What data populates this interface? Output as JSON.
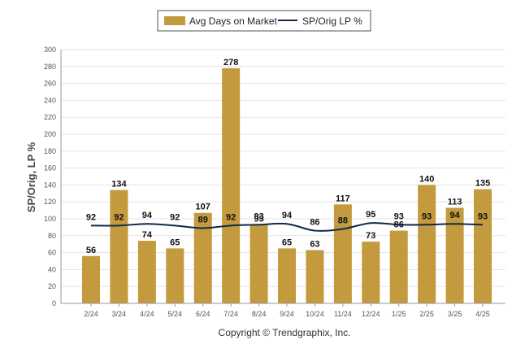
{
  "colors": {
    "bar": "#C39A3E",
    "line": "#0F2A4A",
    "grid": "#E3E3E3",
    "axis": "#999999"
  },
  "legend": {
    "bar_label": "Avg Days on Market",
    "line_label": "SP/Orig LP %"
  },
  "credit": "Copyright © Trendgraphix, Inc.",
  "chart_data": {
    "type": "bar",
    "categories": [
      "2/24",
      "3/24",
      "4/24",
      "5/24",
      "6/24",
      "7/24",
      "8/24",
      "9/24",
      "10/24",
      "11/24",
      "12/24",
      "1/25",
      "2/25",
      "3/25",
      "4/25"
    ],
    "series": [
      {
        "name": "Avg Days on Market",
        "type": "bar",
        "values": [
          56,
          134,
          74,
          65,
          107,
          278,
          93,
          65,
          63,
          117,
          73,
          86,
          140,
          113,
          135
        ]
      },
      {
        "name": "SP/Orig LP %",
        "type": "line",
        "values": [
          92,
          92,
          94,
          92,
          89,
          92,
          93,
          94,
          86,
          88,
          95,
          93,
          93,
          94,
          93
        ]
      }
    ],
    "ylabel": "SP/Orig, LP %",
    "xlabel": "",
    "ylim": [
      0,
      300
    ],
    "yticks": [
      0,
      20,
      40,
      60,
      80,
      100,
      120,
      140,
      160,
      180,
      200,
      220,
      240,
      260,
      280,
      300
    ],
    "grid": true,
    "legend_position": "top-center"
  }
}
